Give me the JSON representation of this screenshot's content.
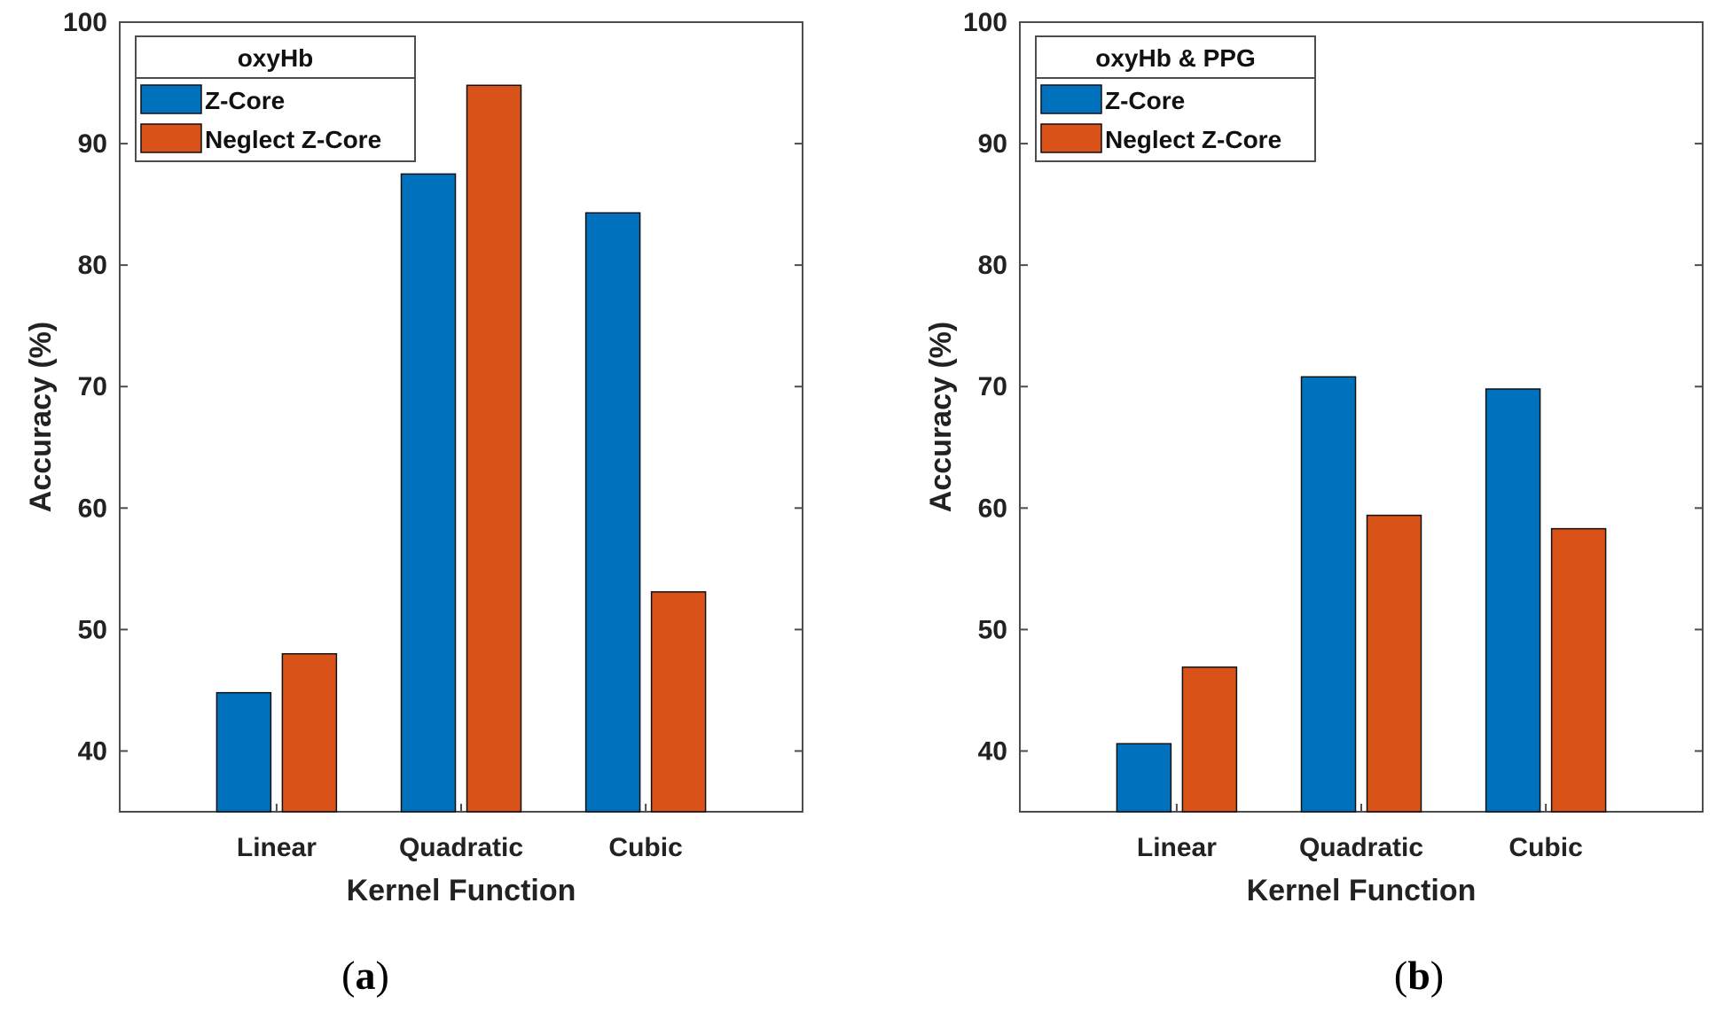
{
  "colors": {
    "series_1": "#0072BD",
    "series_2": "#D95319",
    "axes": "#4d4d4d"
  },
  "chart_data": [
    {
      "type": "bar",
      "panel_label": "a",
      "legend_title": "oxyHb",
      "legend_position": "top-left",
      "xlabel": "Kernel Function",
      "ylabel": "Accuracy (%)",
      "ylim": [
        35,
        100
      ],
      "yticks": [
        40,
        50,
        60,
        70,
        80,
        90,
        100
      ],
      "grid": false,
      "categories": [
        "Linear",
        "Quadratic",
        "Cubic"
      ],
      "series": [
        {
          "name": "Z-Core",
          "values": [
            44.8,
            87.5,
            84.3
          ]
        },
        {
          "name": "Neglect Z-Core",
          "values": [
            48.0,
            94.8,
            53.1
          ]
        }
      ]
    },
    {
      "type": "bar",
      "panel_label": "b",
      "legend_title": "oxyHb & PPG",
      "legend_position": "top-left",
      "xlabel": "Kernel Function",
      "ylabel": "Accuracy (%)",
      "ylim": [
        35,
        100
      ],
      "yticks": [
        40,
        50,
        60,
        70,
        80,
        90,
        100
      ],
      "grid": false,
      "categories": [
        "Linear",
        "Quadratic",
        "Cubic"
      ],
      "series": [
        {
          "name": "Z-Core",
          "values": [
            40.6,
            70.8,
            69.8
          ]
        },
        {
          "name": "Neglect Z-Core",
          "values": [
            46.9,
            59.4,
            58.3
          ]
        }
      ]
    }
  ]
}
